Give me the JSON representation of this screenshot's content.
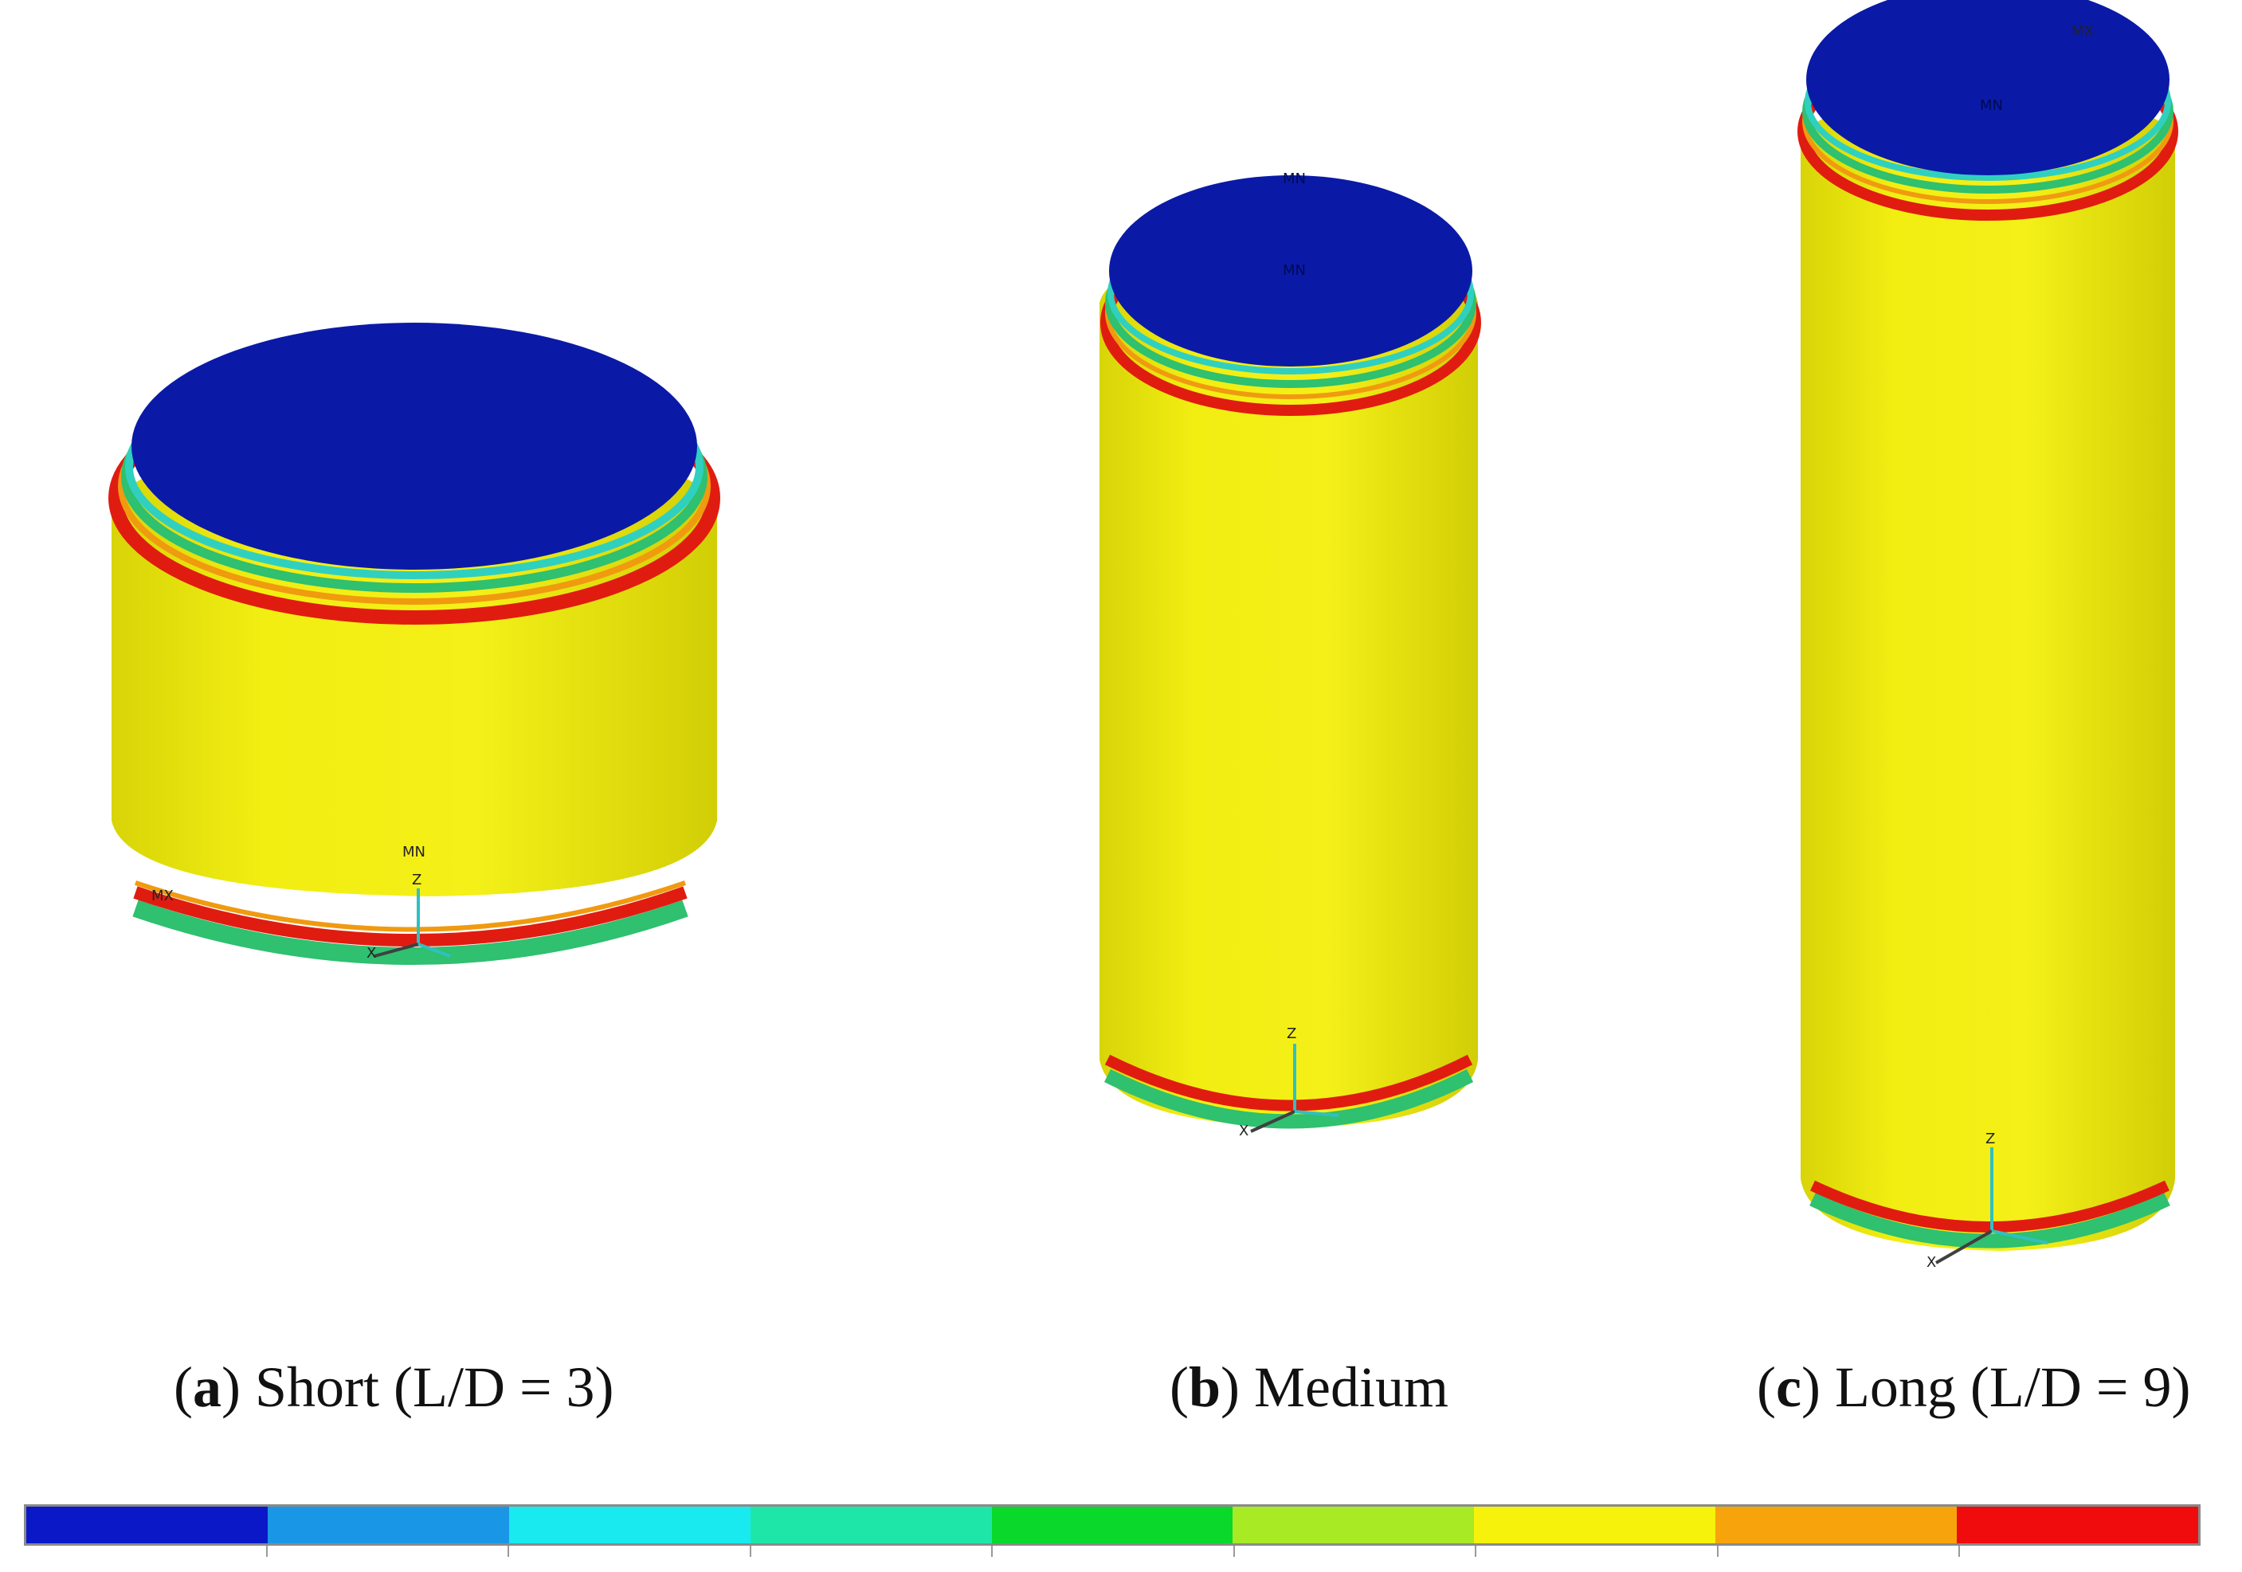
{
  "captions": [
    {
      "letter": "a",
      "text": "Short (L/D = 3)"
    },
    {
      "letter": "b",
      "text": "Medium"
    },
    {
      "letter": "c",
      "text": "Long (L/D = 9)"
    }
  ],
  "contour_colors": {
    "top_cap": "#0a1aa6",
    "body": "#f0ec0a",
    "ring_red": "#e01c10",
    "ring_orange": "#f09a10",
    "ring_green": "#2fc070",
    "ring_cyan": "#30d0c0"
  },
  "legend": {
    "colors": [
      "#0b18c8",
      "#1a96e6",
      "#19eaf0",
      "#1ee6a8",
      "#0ad82a",
      "#a8ea24",
      "#f6f20c",
      "#f7a40c",
      "#f00c0c"
    ]
  },
  "labels": {
    "mn": "MN",
    "mx": "MX",
    "axis_x": "X",
    "axis_z": "Z"
  },
  "icons": [
    "coordinate-axes-icon"
  ]
}
